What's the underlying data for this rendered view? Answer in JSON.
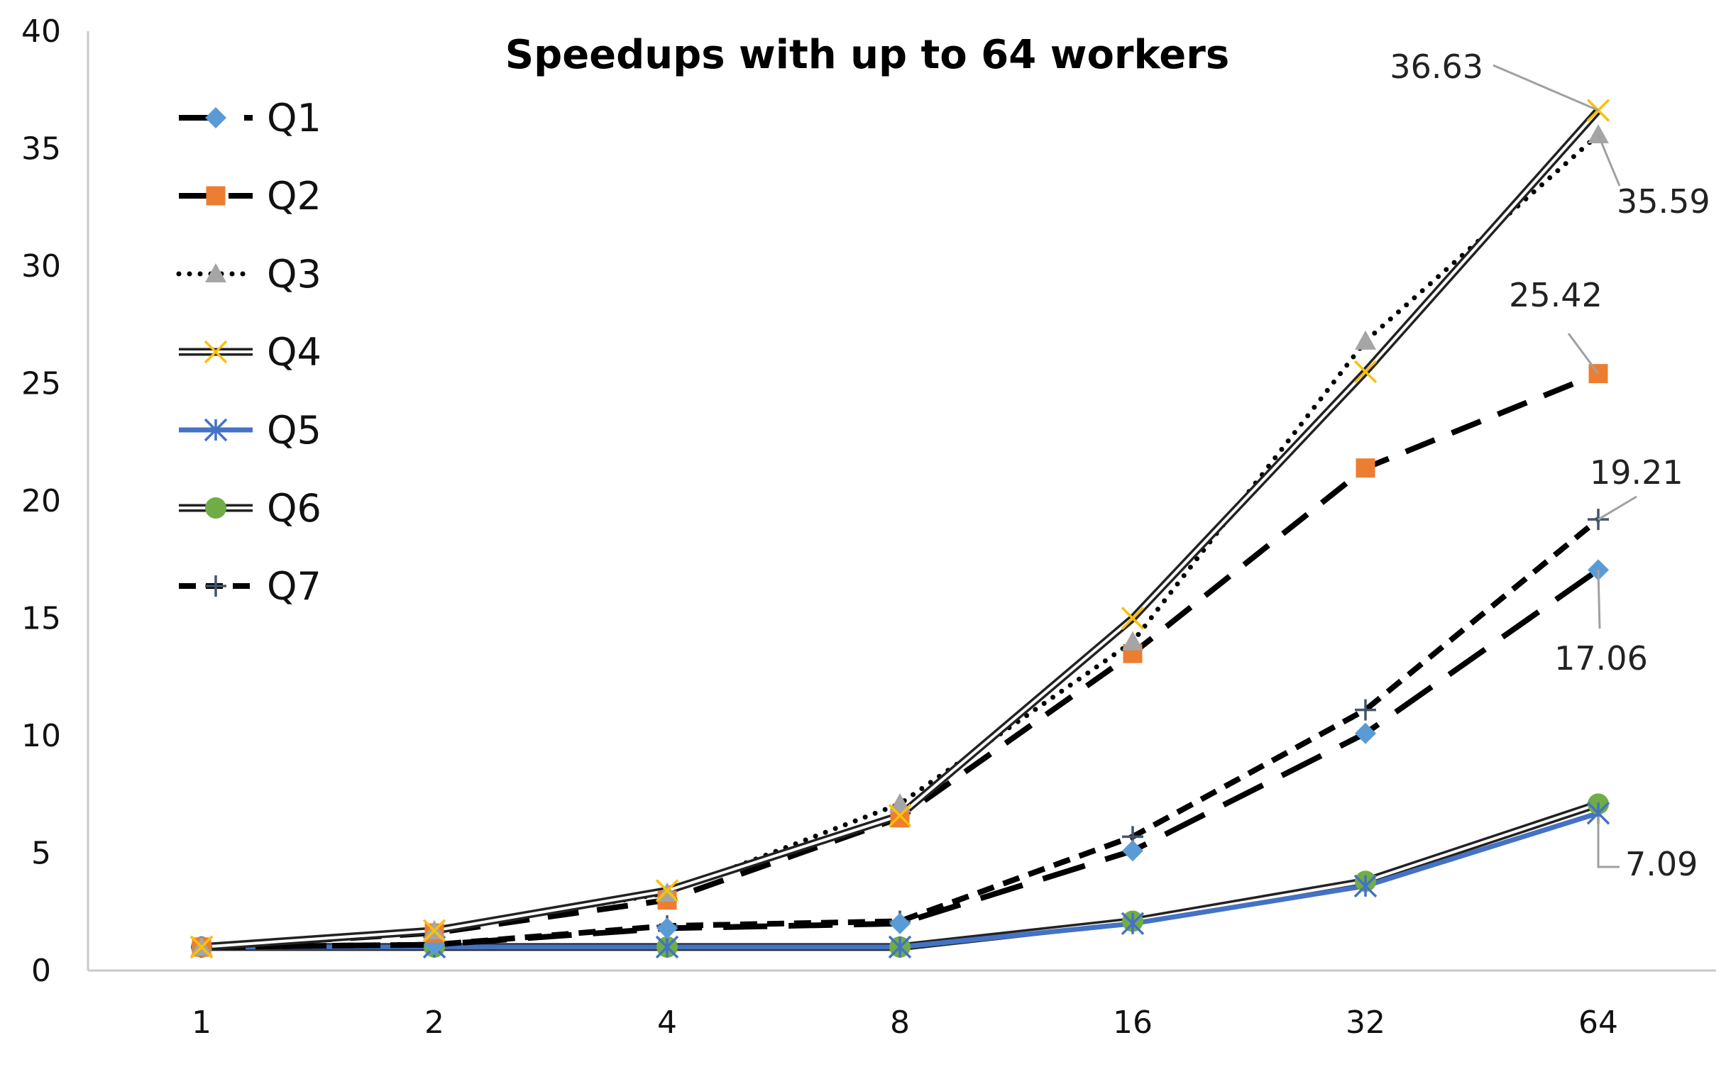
{
  "chart_data": {
    "type": "line",
    "title": "Speedups with up to 64 workers",
    "xlabel": "",
    "ylabel": "",
    "categories": [
      "1",
      "2",
      "4",
      "8",
      "16",
      "32",
      "64"
    ],
    "ylim": [
      0,
      40
    ],
    "yticks": [
      0,
      5,
      10,
      15,
      20,
      25,
      30,
      35,
      40
    ],
    "grid": false,
    "legend_position": "top-left",
    "series": [
      {
        "name": "Q1",
        "values": [
          1,
          1.1,
          1.8,
          2.0,
          5.1,
          10.1,
          17.06
        ],
        "color": "#5B9BD5",
        "marker": "diamond",
        "line": "long-dash"
      },
      {
        "name": "Q2",
        "values": [
          1,
          1.6,
          3.0,
          6.5,
          13.5,
          21.4,
          25.42
        ],
        "color": "#ED7D31",
        "marker": "square",
        "line": "dash"
      },
      {
        "name": "Q3",
        "values": [
          1,
          1.7,
          3.3,
          7.1,
          14.0,
          26.8,
          35.59
        ],
        "color": "#A5A5A5",
        "marker": "triangle",
        "line": "dotted"
      },
      {
        "name": "Q4",
        "values": [
          1,
          1.7,
          3.4,
          6.6,
          15.0,
          25.5,
          36.63
        ],
        "color": "#FFC000",
        "marker": "x",
        "line": "double"
      },
      {
        "name": "Q5",
        "values": [
          1,
          1,
          1,
          1,
          2.0,
          3.6,
          6.7
        ],
        "color": "#4472C4",
        "marker": "asterisk",
        "line": "solid"
      },
      {
        "name": "Q6",
        "values": [
          1,
          1,
          1,
          1,
          2.1,
          3.8,
          7.09
        ],
        "color": "#70AD47",
        "marker": "circle",
        "line": "double"
      },
      {
        "name": "Q7",
        "values": [
          1,
          1.1,
          1.9,
          2.1,
          5.7,
          11.1,
          19.21
        ],
        "color": "#44546A",
        "marker": "plus",
        "line": "short-dash"
      }
    ],
    "annotations": [
      {
        "text": "36.63",
        "series": "Q4",
        "category": "64"
      },
      {
        "text": "35.59",
        "series": "Q3",
        "category": "64"
      },
      {
        "text": "25.42",
        "series": "Q2",
        "category": "64"
      },
      {
        "text": "19.21",
        "series": "Q7",
        "category": "64"
      },
      {
        "text": "17.06",
        "series": "Q1",
        "category": "64"
      },
      {
        "text": "7.09",
        "series": "Q6",
        "category": "64"
      }
    ]
  }
}
